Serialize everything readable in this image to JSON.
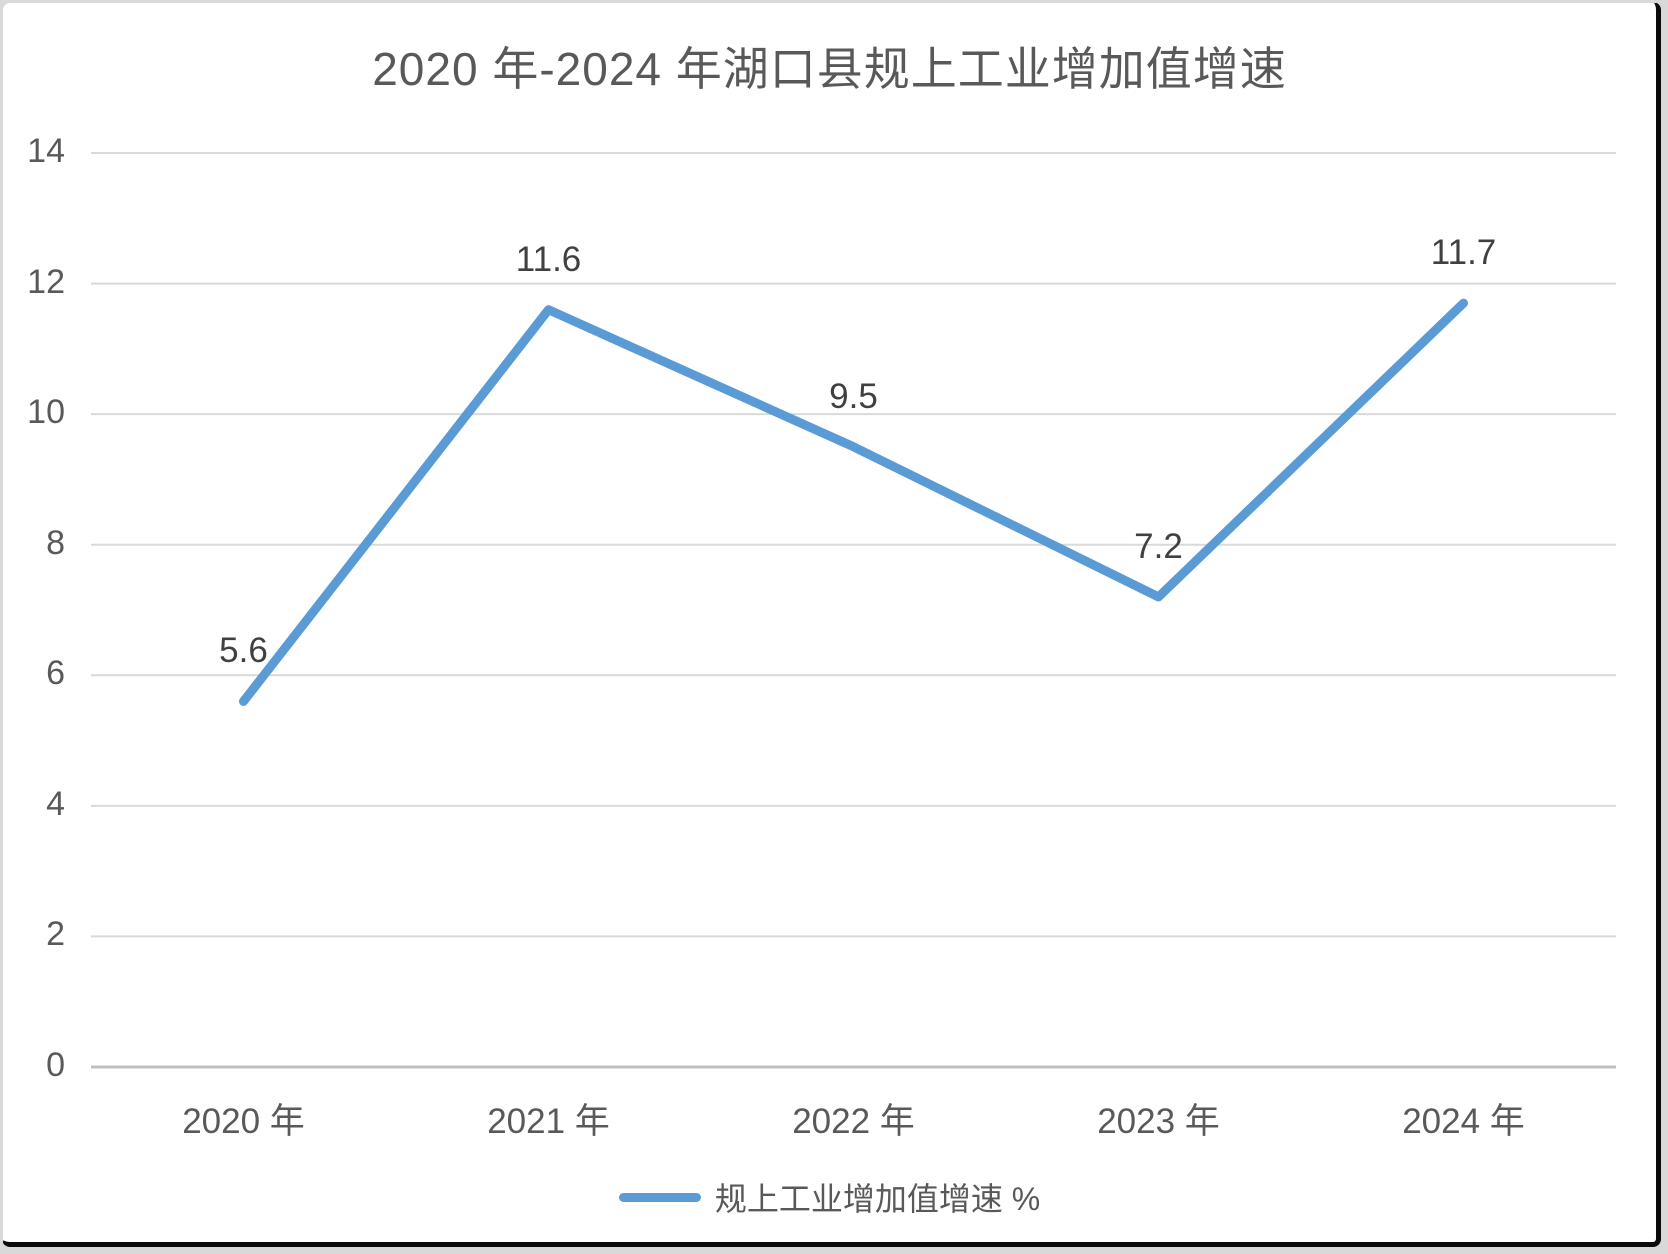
{
  "title": "2020 年-2024 年湖口县规上工业增加值增速",
  "legend": {
    "label": "规上工业增加值增速 %"
  },
  "chart_data": {
    "type": "line",
    "title": "2020 年-2024 年湖口县规上工业增加值增速",
    "categories": [
      "2020 年",
      "2021 年",
      "2022 年",
      "2023 年",
      "2024 年"
    ],
    "series": [
      {
        "name": "规上工业增加值增速 %",
        "values": [
          5.6,
          11.6,
          9.5,
          7.2,
          11.7
        ]
      }
    ],
    "data_labels": [
      "5.6",
      "11.6",
      "9.5",
      "7.2",
      "11.7"
    ],
    "xlabel": "",
    "ylabel": "",
    "ylim": [
      0,
      14
    ],
    "yticks": [
      "0",
      "2",
      "4",
      "6",
      "8",
      "10",
      "12",
      "14"
    ],
    "grid": true,
    "legend_position": "bottom",
    "colors": {
      "line": "#5b9bd5",
      "gridline": "#d9d9d9",
      "baseline": "#bfbfbf",
      "tick_text": "#595959",
      "data_label_text": "#404040",
      "title_text": "#595959"
    }
  }
}
